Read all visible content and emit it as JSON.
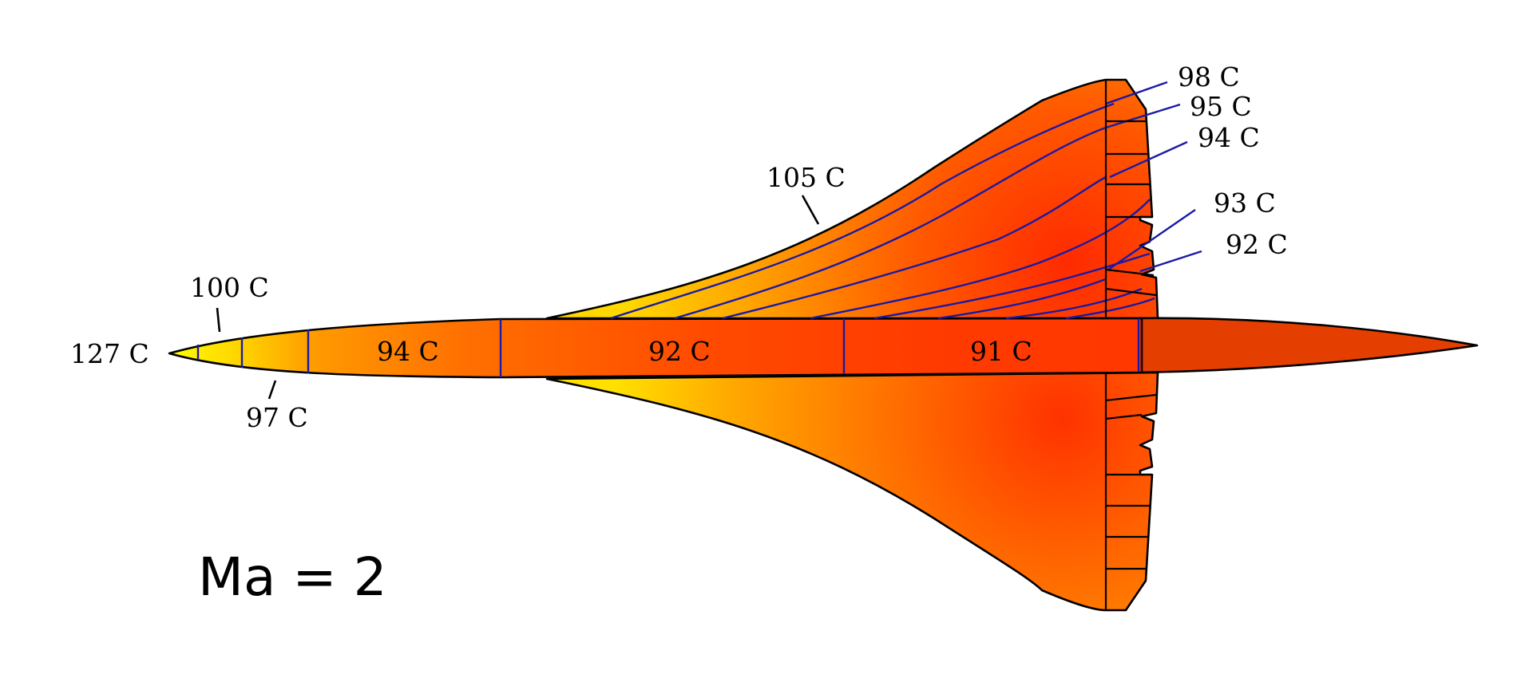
{
  "mach_number": "Ma = 2",
  "temperature_labels": {
    "nose_tip": "127 C",
    "nose_upper": "100 C",
    "nose_lower": "97 C",
    "forward_fuselage": "94 C",
    "mid_fuselage": "92 C",
    "aft_fuselage": "91 C",
    "wing_surface": "105 C",
    "wing_tip": "98 C",
    "wing_band_2": "95 C",
    "wing_band_3": "94 C",
    "wing_band_4": "93 C",
    "wing_band_5": "92 C"
  },
  "colors": {
    "hottest": "#ffff00",
    "warm": "#ffd400",
    "medium": "#ff9a00",
    "hot_zone": "#ff3a00",
    "tail_cone": "#e84a00",
    "isotherm_lines": "#1a1aa6",
    "outline": "#000000"
  }
}
